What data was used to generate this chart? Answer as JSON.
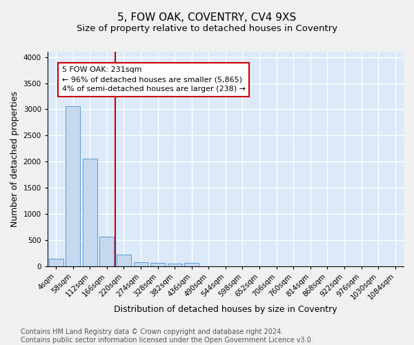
{
  "title": "5, FOW OAK, COVENTRY, CV4 9XS",
  "subtitle": "Size of property relative to detached houses in Coventry",
  "xlabel": "Distribution of detached houses by size in Coventry",
  "ylabel": "Number of detached properties",
  "footer_line1": "Contains HM Land Registry data © Crown copyright and database right 2024.",
  "footer_line2": "Contains public sector information licensed under the Open Government Licence v3.0.",
  "bar_labels": [
    "4sqm",
    "58sqm",
    "112sqm",
    "166sqm",
    "220sqm",
    "274sqm",
    "328sqm",
    "382sqm",
    "436sqm",
    "490sqm",
    "544sqm",
    "598sqm",
    "652sqm",
    "706sqm",
    "760sqm",
    "814sqm",
    "868sqm",
    "922sqm",
    "976sqm",
    "1030sqm",
    "1084sqm"
  ],
  "bar_values": [
    150,
    3060,
    2060,
    570,
    230,
    80,
    60,
    50,
    60,
    0,
    0,
    0,
    0,
    0,
    0,
    0,
    0,
    0,
    0,
    0,
    0
  ],
  "bar_color": "#c5d8f0",
  "bar_edge_color": "#5b9bd5",
  "ylim": [
    0,
    4100
  ],
  "yticks": [
    0,
    500,
    1000,
    1500,
    2000,
    2500,
    3000,
    3500,
    4000
  ],
  "vline_x_index": 4,
  "vline_color": "#cc0000",
  "annotation_text": "5 FOW OAK: 231sqm\n← 96% of detached houses are smaller (5,865)\n4% of semi-detached houses are larger (238) →",
  "annotation_box_color": "#ffffff",
  "annotation_box_edge": "#cc0000",
  "figure_bg_color": "#f0f0f0",
  "plot_bg_color": "#dce9f8",
  "grid_color": "#ffffff",
  "title_fontsize": 11,
  "subtitle_fontsize": 9.5,
  "xlabel_fontsize": 9,
  "ylabel_fontsize": 9,
  "tick_fontsize": 7.5,
  "annotation_fontsize": 8,
  "footer_fontsize": 7
}
